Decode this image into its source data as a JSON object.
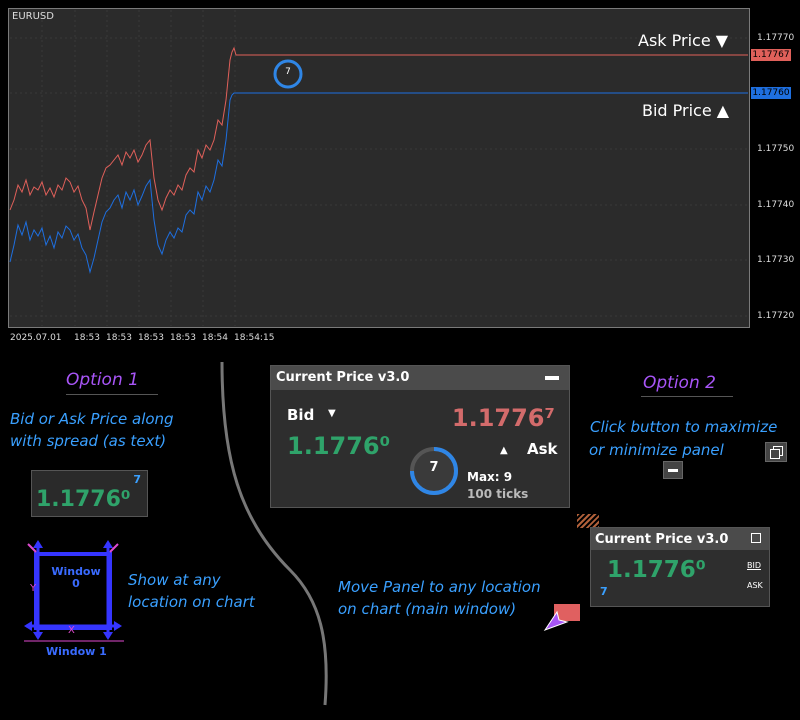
{
  "chart": {
    "symbol": "EURUSD",
    "y_ticks": [
      "1.17770",
      "1.17750",
      "1.17740",
      "1.17730",
      "1.17720"
    ],
    "x_ticks": [
      "2025.07.01",
      "18:53",
      "18:53",
      "18:53",
      "18:53",
      "18:54",
      "18:54:15"
    ],
    "ask_tag": "1.17767",
    "bid_tag": "1.17760",
    "ask_note": "Ask Price ▼",
    "bid_note": "Bid Price ▲",
    "spread_badge": "7",
    "ask_color": "#e0605a",
    "bid_color": "#1e6fe0"
  },
  "option1": {
    "title": "Option 1",
    "desc": [
      "Bid or Ask Price along",
      "with spread (as text)"
    ],
    "spread": "7",
    "price": "1.1776⁰",
    "window0": "Window\n0",
    "window1": "Window 1",
    "y_mark": "Y",
    "x_mark": "X",
    "show_text": [
      "Show at any",
      "location on chart"
    ]
  },
  "panel_full": {
    "title": "Current Price v3.0",
    "bid_label": "Bid",
    "ask_label": "Ask",
    "bid_price": "1.1776⁰",
    "ask_price": "1.1776⁷",
    "spread": "7",
    "max_label": "Max: 9",
    "ticks_label": "100 ticks"
  },
  "option2": {
    "title": "Option 2",
    "desc": [
      "Click button to maximize",
      "or minimize panel"
    ],
    "move_text": [
      "Move Panel to any location",
      "on chart (main window)"
    ]
  },
  "panel_mini": {
    "title": "Current Price v3.0",
    "price": "1.1776⁰",
    "spread": "7",
    "bid_btn": "BID",
    "ask_btn": "ASK"
  }
}
